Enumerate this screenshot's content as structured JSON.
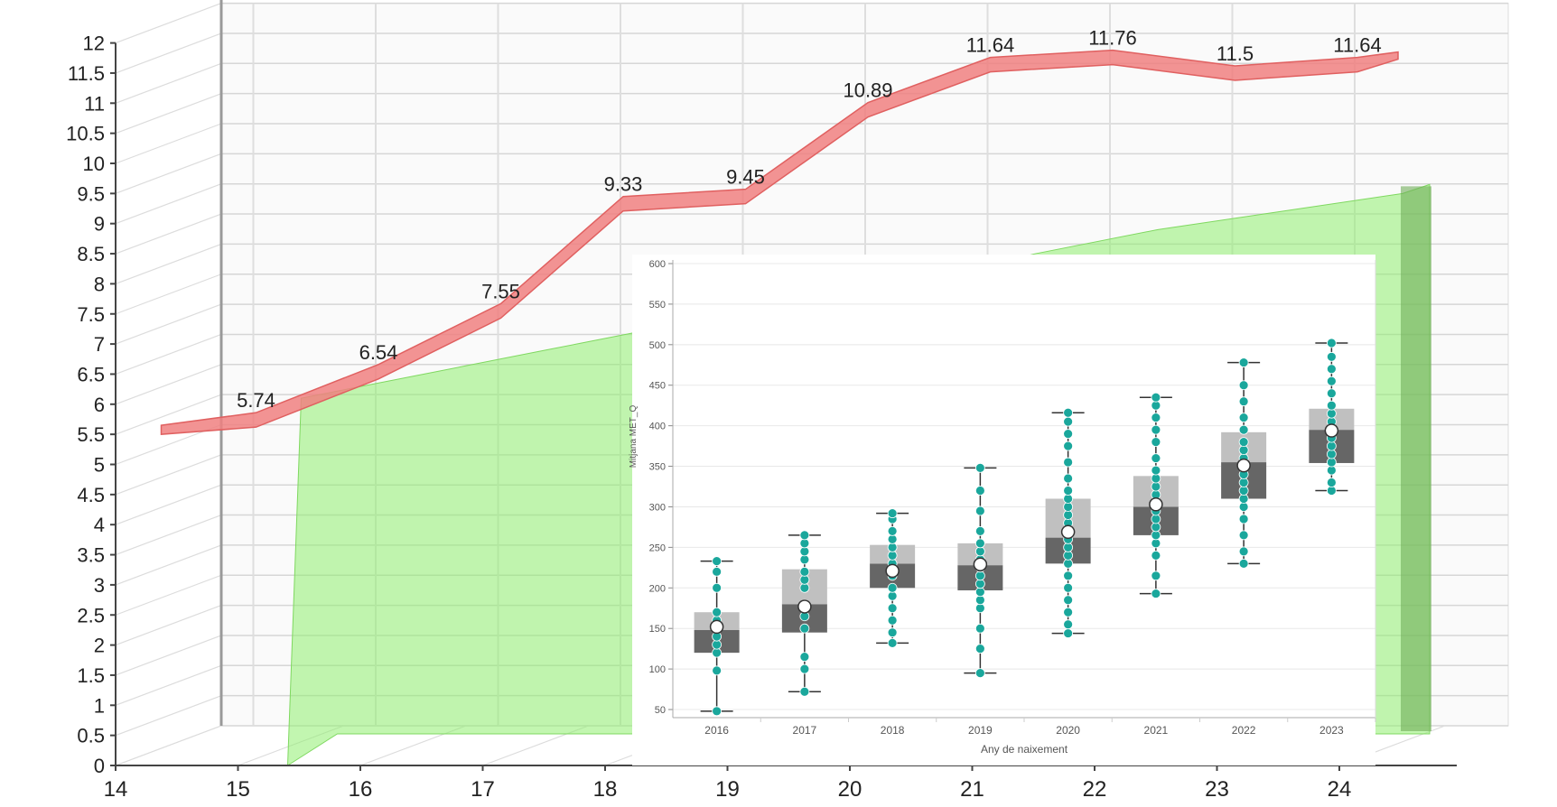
{
  "chart_data": [
    {
      "type": "line",
      "style": "3d ribbon line over 3d area",
      "x": [
        15,
        16,
        17,
        18,
        19,
        20,
        21,
        22,
        23,
        24
      ],
      "x_ticks": [
        "14",
        "15",
        "16",
        "17",
        "18",
        "19",
        "20",
        "21",
        "22",
        "23",
        "24"
      ],
      "y_ticks": [
        "0",
        "0.5",
        "1",
        "1.5",
        "2",
        "2.5",
        "3",
        "3.5",
        "4",
        "4.5",
        "5",
        "5.5",
        "6",
        "6.5",
        "7",
        "7.5",
        "8",
        "8.5",
        "9",
        "9.5",
        "10",
        "10.5",
        "11",
        "11.5",
        "12"
      ],
      "ylim": [
        0,
        12
      ],
      "xlim": [
        14,
        24
      ],
      "grid": true,
      "series": [
        {
          "values": [
            5.74,
            6.54,
            7.55,
            9.33,
            9.45,
            10.89,
            11.64,
            11.76,
            11.5,
            11.64
          ],
          "labels": [
            "5.74",
            "6.54",
            "7.55",
            "9.33",
            "9.45",
            "10.89",
            "11.64",
            "11.76",
            "11.5",
            "11.64"
          ],
          "color": "#f08080"
        },
        {
          "values": [
            5.8,
            6.2,
            6.6,
            7.0,
            7.3,
            7.7,
            8.2,
            8.6,
            8.9,
            9.2
          ],
          "color": "#90ee70"
        }
      ]
    },
    {
      "type": "box",
      "xlabel": "Any de naixement",
      "ylabel": "Mitjana MET_Q",
      "categories": [
        "2016",
        "2017",
        "2018",
        "2019",
        "2020",
        "2021",
        "2022",
        "2023"
      ],
      "ylim": [
        40,
        600
      ],
      "y_ticks": [
        "50",
        "100",
        "150",
        "200",
        "250",
        "300",
        "350",
        "400",
        "450",
        "500",
        "550",
        "600"
      ],
      "grid": true,
      "colors": {
        "q1_box": "#666666",
        "q3_box": "#c0c0c0",
        "points": "#1aa79c"
      },
      "boxes": [
        {
          "min": 48,
          "q1": 120,
          "median": 148,
          "q3": 170,
          "max": 233,
          "mean": 152
        },
        {
          "min": 72,
          "q1": 145,
          "median": 180,
          "q3": 223,
          "max": 265,
          "mean": 177
        },
        {
          "min": 132,
          "q1": 200,
          "median": 230,
          "q3": 253,
          "max": 292,
          "mean": 221
        },
        {
          "min": 95,
          "q1": 197,
          "median": 228,
          "q3": 255,
          "max": 348,
          "mean": 229
        },
        {
          "min": 144,
          "q1": 230,
          "median": 262,
          "q3": 310,
          "max": 416,
          "mean": 269
        },
        {
          "min": 193,
          "q1": 265,
          "median": 300,
          "q3": 338,
          "max": 435,
          "mean": 303
        },
        {
          "min": 230,
          "q1": 310,
          "median": 355,
          "q3": 392,
          "max": 478,
          "mean": 351
        },
        {
          "min": 320,
          "q1": 354,
          "median": 395,
          "q3": 421,
          "max": 502,
          "mean": 394
        }
      ],
      "points": [
        [
          48,
          98,
          120,
          130,
          140,
          150,
          160,
          170,
          200,
          220,
          233
        ],
        [
          72,
          100,
          115,
          150,
          165,
          180,
          200,
          210,
          220,
          235,
          245,
          255,
          265
        ],
        [
          132,
          145,
          160,
          175,
          190,
          200,
          215,
          230,
          240,
          250,
          260,
          270,
          285,
          292
        ],
        [
          95,
          125,
          150,
          175,
          185,
          195,
          205,
          215,
          225,
          235,
          245,
          255,
          270,
          295,
          320,
          348
        ],
        [
          144,
          155,
          170,
          185,
          200,
          215,
          230,
          240,
          250,
          260,
          270,
          280,
          290,
          300,
          310,
          320,
          335,
          355,
          375,
          390,
          405,
          416
        ],
        [
          193,
          215,
          240,
          255,
          265,
          275,
          285,
          295,
          305,
          315,
          325,
          335,
          345,
          360,
          380,
          395,
          410,
          425,
          435
        ],
        [
          230,
          245,
          265,
          285,
          300,
          310,
          320,
          330,
          340,
          350,
          360,
          370,
          380,
          395,
          410,
          430,
          450,
          478
        ],
        [
          320,
          330,
          345,
          355,
          365,
          375,
          385,
          395,
          405,
          415,
          425,
          440,
          455,
          470,
          485,
          502
        ]
      ]
    }
  ]
}
